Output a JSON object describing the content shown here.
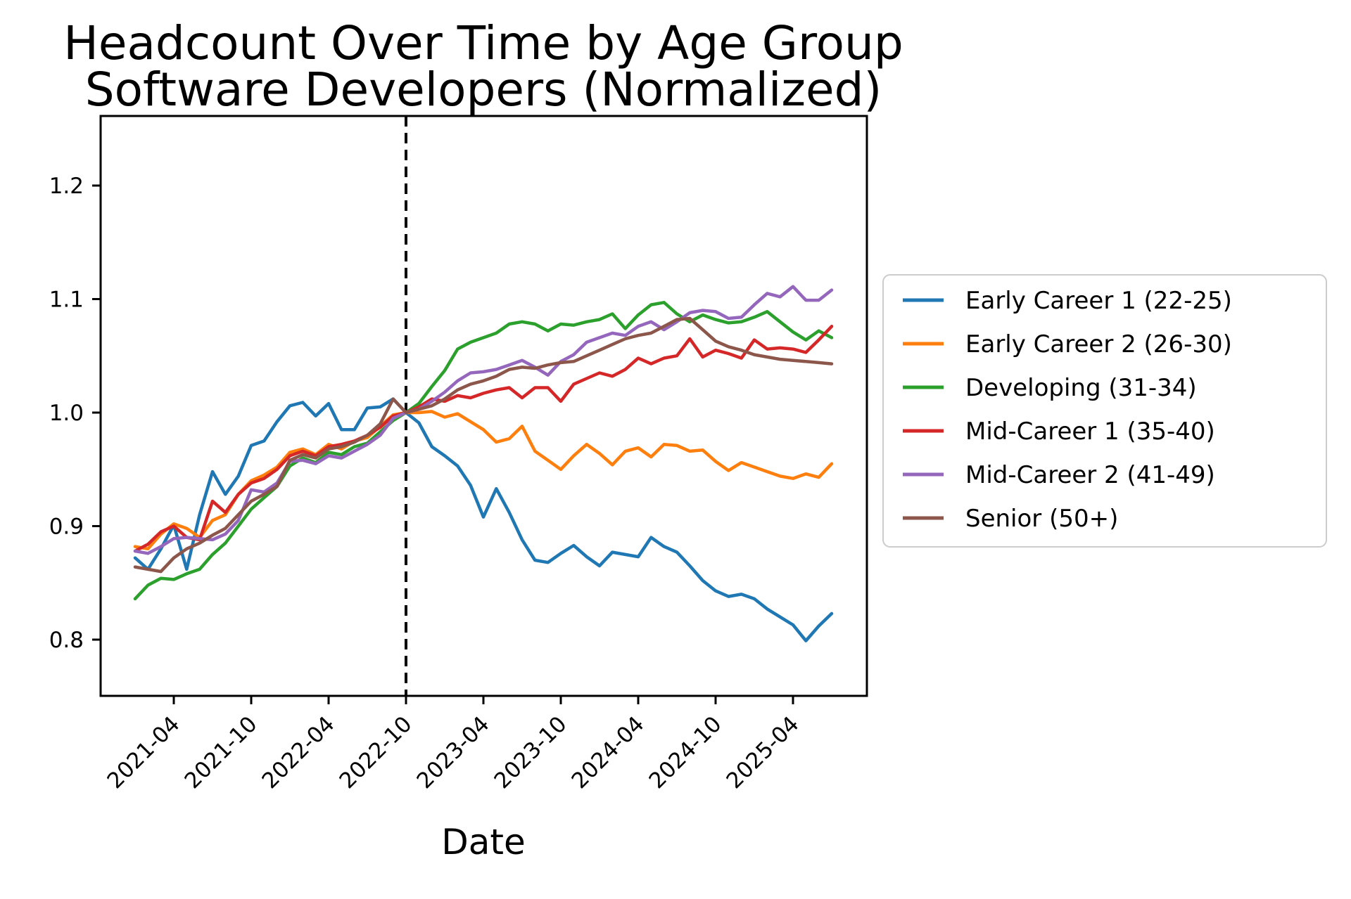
{
  "figure": {
    "background": "#ffffff",
    "frame_color": "#000000"
  },
  "chart_data": {
    "type": "line",
    "title_line1": "Headcount Over Time by Age Group",
    "title_line2": "Software Developers (Normalized)",
    "xlabel": "Date",
    "ylabel": "",
    "grid": false,
    "legend_position": "center right",
    "y_ticks": [
      0.8,
      0.9,
      1.0,
      1.1,
      1.2
    ],
    "y_tick_labels": [
      "0.8",
      "0.9",
      "1.0",
      "1.1",
      "1.2"
    ],
    "x_tick_labels": [
      "2021-04",
      "2021-10",
      "2022-04",
      "2022-10",
      "2023-04",
      "2023-10",
      "2024-04",
      "2024-10",
      "2025-04"
    ],
    "x_tick_month_indices": [
      3,
      9,
      15,
      21,
      27,
      33,
      39,
      45,
      51
    ],
    "ylim": [
      0.7505,
      1.226
    ],
    "vline": {
      "month": "2022-10",
      "month_index": 21,
      "style": "dashed",
      "color": "#000000"
    },
    "months": [
      "2021-01",
      "2021-02",
      "2021-03",
      "2021-04",
      "2021-05",
      "2021-06",
      "2021-07",
      "2021-08",
      "2021-09",
      "2021-10",
      "2021-11",
      "2021-12",
      "2022-01",
      "2022-02",
      "2022-03",
      "2022-04",
      "2022-05",
      "2022-06",
      "2022-07",
      "2022-08",
      "2022-09",
      "2022-10",
      "2022-11",
      "2022-12",
      "2023-01",
      "2023-02",
      "2023-03",
      "2023-04",
      "2023-05",
      "2023-06",
      "2023-07",
      "2023-08",
      "2023-09",
      "2023-10",
      "2023-11",
      "2023-12",
      "2024-01",
      "2024-02",
      "2024-03",
      "2024-04",
      "2024-05",
      "2024-06",
      "2024-07",
      "2024-08",
      "2024-09",
      "2024-10",
      "2024-11",
      "2024-12",
      "2025-01",
      "2025-02",
      "2025-03",
      "2025-04",
      "2025-05",
      "2025-06",
      "2025-07"
    ],
    "series": [
      {
        "name": "Early Career 1 (22-25)",
        "slug": "early-career-1",
        "color": "#1f77b4",
        "values": [
          0.872,
          0.862,
          0.88,
          0.901,
          0.862,
          0.91,
          0.948,
          0.928,
          0.944,
          0.971,
          0.975,
          0.992,
          1.006,
          1.009,
          0.997,
          1.008,
          0.985,
          0.985,
          1.004,
          1.005,
          1.012,
          1.0,
          0.991,
          0.97,
          0.962,
          0.953,
          0.936,
          0.908,
          0.933,
          0.912,
          0.888,
          0.87,
          0.868,
          0.876,
          0.883,
          0.873,
          0.865,
          0.877,
          0.875,
          0.873,
          0.89,
          0.882,
          0.877,
          0.865,
          0.852,
          0.843,
          0.838,
          0.84,
          0.836,
          0.827,
          0.82,
          0.813,
          0.799,
          0.812,
          0.823
        ]
      },
      {
        "name": "Early Career 2 (26-30)",
        "slug": "early-career-2",
        "color": "#ff7f0e",
        "values": [
          0.882,
          0.88,
          0.893,
          0.902,
          0.898,
          0.89,
          0.905,
          0.91,
          0.928,
          0.94,
          0.945,
          0.952,
          0.965,
          0.968,
          0.963,
          0.972,
          0.968,
          0.975,
          0.978,
          0.988,
          0.998,
          1.0,
          1.0,
          1.001,
          0.996,
          0.999,
          0.992,
          0.985,
          0.974,
          0.977,
          0.988,
          0.966,
          0.958,
          0.95,
          0.962,
          0.972,
          0.964,
          0.954,
          0.966,
          0.969,
          0.961,
          0.972,
          0.971,
          0.966,
          0.967,
          0.957,
          0.949,
          0.956,
          0.952,
          0.948,
          0.944,
          0.942,
          0.946,
          0.943,
          0.955
        ]
      },
      {
        "name": "Developing (31-34)",
        "slug": "developing",
        "color": "#2ca02c",
        "values": [
          0.836,
          0.848,
          0.854,
          0.853,
          0.858,
          0.862,
          0.875,
          0.885,
          0.9,
          0.915,
          0.925,
          0.935,
          0.953,
          0.96,
          0.956,
          0.965,
          0.963,
          0.97,
          0.973,
          0.983,
          0.993,
          1.0,
          1.008,
          1.023,
          1.037,
          1.056,
          1.062,
          1.066,
          1.07,
          1.078,
          1.08,
          1.078,
          1.072,
          1.078,
          1.077,
          1.08,
          1.082,
          1.087,
          1.074,
          1.086,
          1.095,
          1.097,
          1.087,
          1.08,
          1.086,
          1.082,
          1.079,
          1.08,
          1.084,
          1.089,
          1.08,
          1.071,
          1.064,
          1.072,
          1.066
        ]
      },
      {
        "name": "Mid-Career 1 (35-40)",
        "slug": "mid-career-1",
        "color": "#d62728",
        "values": [
          0.878,
          0.884,
          0.895,
          0.9,
          0.89,
          0.888,
          0.922,
          0.912,
          0.928,
          0.938,
          0.942,
          0.95,
          0.962,
          0.966,
          0.962,
          0.97,
          0.972,
          0.975,
          0.98,
          0.987,
          0.997,
          1.0,
          1.005,
          1.012,
          1.01,
          1.015,
          1.013,
          1.017,
          1.02,
          1.022,
          1.013,
          1.022,
          1.022,
          1.01,
          1.025,
          1.03,
          1.035,
          1.032,
          1.038,
          1.048,
          1.043,
          1.048,
          1.05,
          1.065,
          1.049,
          1.055,
          1.052,
          1.048,
          1.064,
          1.056,
          1.057,
          1.056,
          1.053,
          1.064,
          1.076
        ]
      },
      {
        "name": "Mid-Career 2 (41-49)",
        "slug": "mid-career-2",
        "color": "#9467bd",
        "values": [
          0.878,
          0.876,
          0.882,
          0.889,
          0.89,
          0.889,
          0.888,
          0.893,
          0.905,
          0.932,
          0.93,
          0.938,
          0.957,
          0.958,
          0.955,
          0.962,
          0.96,
          0.966,
          0.972,
          0.98,
          0.995,
          1.0,
          1.003,
          1.01,
          1.018,
          1.028,
          1.035,
          1.036,
          1.038,
          1.042,
          1.046,
          1.04,
          1.033,
          1.045,
          1.051,
          1.062,
          1.066,
          1.07,
          1.068,
          1.076,
          1.08,
          1.073,
          1.08,
          1.088,
          1.09,
          1.089,
          1.083,
          1.084,
          1.095,
          1.105,
          1.102,
          1.111,
          1.099,
          1.099,
          1.108
        ]
      },
      {
        "name": "Senior (50+)",
        "slug": "senior",
        "color": "#8c564b",
        "values": [
          0.864,
          0.862,
          0.86,
          0.872,
          0.88,
          0.885,
          0.892,
          0.898,
          0.91,
          0.922,
          0.928,
          0.935,
          0.958,
          0.963,
          0.96,
          0.968,
          0.97,
          0.974,
          0.98,
          0.99,
          1.012,
          1.0,
          1.003,
          1.006,
          1.012,
          1.02,
          1.025,
          1.028,
          1.032,
          1.038,
          1.04,
          1.039,
          1.042,
          1.044,
          1.045,
          1.05,
          1.055,
          1.06,
          1.065,
          1.068,
          1.07,
          1.076,
          1.082,
          1.083,
          1.073,
          1.063,
          1.058,
          1.055,
          1.051,
          1.049,
          1.047,
          1.046,
          1.045,
          1.044,
          1.043
        ]
      }
    ]
  }
}
